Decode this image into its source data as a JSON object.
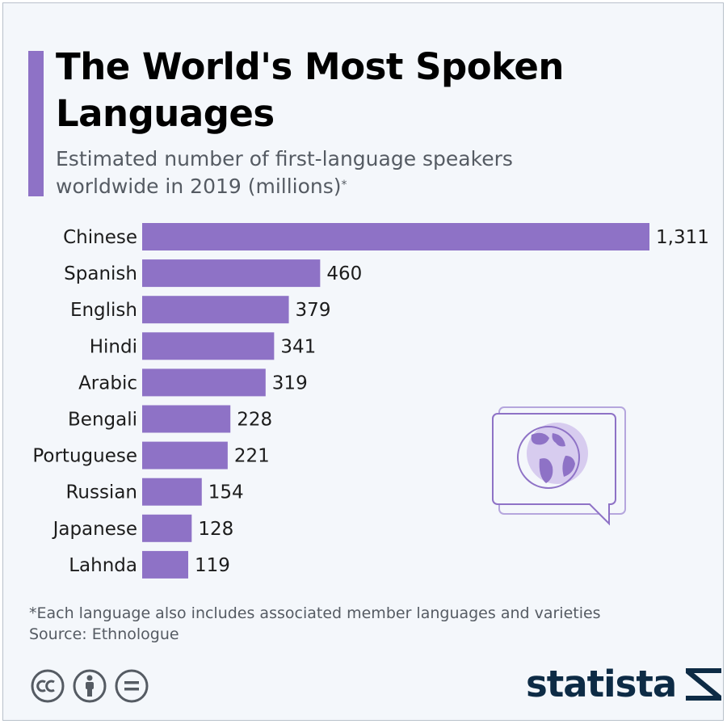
{
  "title": "The World's Most Spoken Languages",
  "subtitle_line1": "Estimated number of first-language speakers",
  "subtitle_line2": "worldwide in 2019 (millions)",
  "subtitle_mark": "*",
  "footnote": "*Each language also includes associated member languages and varieties",
  "source": "Source: Ethnologue",
  "brand": "statista",
  "colors": {
    "bar": "#8e72c6",
    "accent": "#8e72c6",
    "background": "#f4f7fb",
    "brand": "#0d2b45"
  },
  "icons": [
    "speech-bubble-globe-icon",
    "cc-icon",
    "by-icon",
    "nd-icon",
    "statista-logo-icon"
  ],
  "chart_data": {
    "type": "bar",
    "orientation": "horizontal",
    "title": "The World's Most Spoken Languages",
    "ylabel": "",
    "xlabel": "",
    "xlim": [
      0,
      1311
    ],
    "categories": [
      "Chinese",
      "Spanish",
      "English",
      "Hindi",
      "Arabic",
      "Bengali",
      "Portuguese",
      "Russian",
      "Japanese",
      "Lahnda"
    ],
    "values": [
      1311,
      460,
      379,
      341,
      319,
      228,
      221,
      154,
      128,
      119
    ],
    "value_labels": [
      "1,311",
      "460",
      "379",
      "341",
      "319",
      "228",
      "221",
      "154",
      "128",
      "119"
    ],
    "grid": false
  }
}
